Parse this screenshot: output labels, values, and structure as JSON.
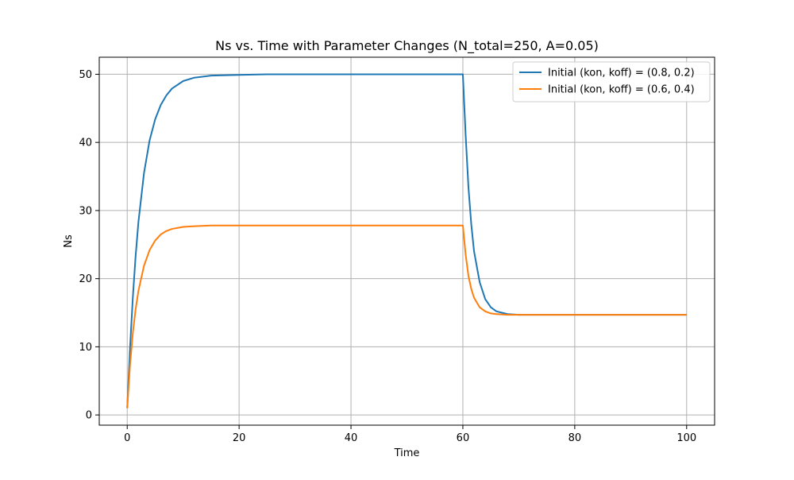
{
  "chart_data": {
    "type": "line",
    "title": "Ns vs. Time with Parameter Changes (N_total=250, A=0.05)",
    "xlabel": "Time",
    "ylabel": "Ns",
    "xlim": [
      -5,
      105
    ],
    "ylim": [
      -1.5,
      52.5
    ],
    "xticks": [
      0,
      20,
      40,
      60,
      80,
      100
    ],
    "xtick_labels": [
      "0",
      "20",
      "40",
      "60",
      "80",
      "100"
    ],
    "yticks": [
      0,
      10,
      20,
      30,
      40,
      50
    ],
    "ytick_labels": [
      "0",
      "10",
      "20",
      "30",
      "40",
      "50"
    ],
    "grid": true,
    "legend_position": "top-right",
    "series": [
      {
        "name": "Initial (kon, koff) = (0.8, 0.2)",
        "color": "#1f77b4",
        "x": [
          0,
          0.5,
          1,
          1.5,
          2,
          3,
          4,
          5,
          6,
          7,
          8,
          10,
          12,
          15,
          20,
          25,
          30,
          40,
          50,
          60,
          60.5,
          61,
          61.5,
          62,
          63,
          64,
          65,
          66,
          68,
          70,
          80,
          90,
          100
        ],
        "y": [
          1,
          9.8,
          17.2,
          23.3,
          28.3,
          35.5,
          40.3,
          43.4,
          45.5,
          46.9,
          47.9,
          49.0,
          49.5,
          49.8,
          49.9,
          50,
          50,
          50,
          50,
          50,
          41.0,
          33.4,
          28.0,
          24.0,
          19.5,
          17.0,
          15.8,
          15.2,
          14.8,
          14.7,
          14.7,
          14.7,
          14.7
        ]
      },
      {
        "name": "Initial (kon, koff) = (0.6, 0.4)",
        "color": "#ff7f0e",
        "x": [
          0,
          0.5,
          1,
          1.5,
          2,
          3,
          4,
          5,
          6,
          7,
          8,
          10,
          12,
          15,
          20,
          30,
          40,
          50,
          60,
          60.5,
          61,
          61.5,
          62,
          63,
          64,
          65,
          66,
          68,
          70,
          80,
          90,
          100
        ],
        "y": [
          1,
          7.3,
          12.0,
          15.5,
          18.2,
          21.9,
          24.2,
          25.6,
          26.5,
          27.0,
          27.3,
          27.6,
          27.7,
          27.8,
          27.8,
          27.8,
          27.8,
          27.8,
          27.8,
          23.5,
          20.4,
          18.5,
          17.2,
          15.8,
          15.2,
          14.9,
          14.8,
          14.7,
          14.7,
          14.7,
          14.7,
          14.7
        ]
      }
    ]
  }
}
